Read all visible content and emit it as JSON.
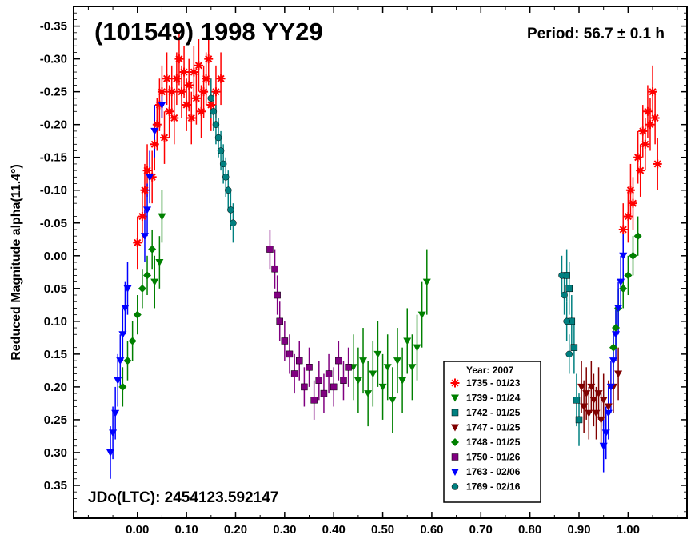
{
  "chart_data": {
    "type": "scatter",
    "title": "(101549) 1998 YY29",
    "period_label": "Period: 56.7 ± 0.1 h",
    "epoch_label": "JDo(LTC): 2454123.592147",
    "xlabel": "",
    "ylabel": "Reduced Magnitude alpha(11.4°)",
    "xlim": [
      -0.13,
      1.12
    ],
    "ylim": [
      -0.38,
      0.4
    ],
    "y_inverted": true,
    "x_ticks": [
      "0.00",
      "0.10",
      "0.20",
      "0.30",
      "0.40",
      "0.50",
      "0.60",
      "0.70",
      "0.80",
      "0.90",
      "1.00"
    ],
    "y_ticks": [
      "-0.35",
      "-0.30",
      "-0.25",
      "-0.20",
      "-0.15",
      "-0.10",
      "-0.05",
      "0.00",
      "0.05",
      "0.10",
      "0.15",
      "0.20",
      "0.25",
      "0.30",
      "0.35"
    ],
    "legend": {
      "title": "Year: 2007",
      "position": "bottom-right",
      "entries": [
        "1735 - 01/23",
        "1739 - 01/24",
        "1742 - 01/25",
        "1747 - 01/25",
        "1748 - 01/25",
        "1750 - 01/26",
        "1763 - 02/06",
        "1769 - 02/16"
      ]
    },
    "series": [
      {
        "name": "1735 - 01/23",
        "color": "#ff0000",
        "marker": "asterisk",
        "points": [
          [
            0.0,
            -0.02,
            0.04
          ],
          [
            0.01,
            -0.06,
            0.04
          ],
          [
            0.015,
            -0.1,
            0.04
          ],
          [
            0.02,
            -0.13,
            0.04
          ],
          [
            0.03,
            -0.12,
            0.04
          ],
          [
            0.035,
            -0.17,
            0.04
          ],
          [
            0.04,
            -0.2,
            0.04
          ],
          [
            0.045,
            -0.23,
            0.04
          ],
          [
            0.05,
            -0.25,
            0.04
          ],
          [
            0.055,
            -0.18,
            0.04
          ],
          [
            0.06,
            -0.27,
            0.04
          ],
          [
            0.065,
            -0.22,
            0.04
          ],
          [
            0.07,
            -0.25,
            0.04
          ],
          [
            0.075,
            -0.21,
            0.04
          ],
          [
            0.08,
            -0.27,
            0.04
          ],
          [
            0.085,
            -0.3,
            0.04
          ],
          [
            0.09,
            -0.25,
            0.04
          ],
          [
            0.095,
            -0.28,
            0.04
          ],
          [
            0.1,
            -0.23,
            0.04
          ],
          [
            0.105,
            -0.26,
            0.04
          ],
          [
            0.11,
            -0.21,
            0.04
          ],
          [
            0.115,
            -0.28,
            0.04
          ],
          [
            0.12,
            -0.24,
            0.04
          ],
          [
            0.125,
            -0.29,
            0.04
          ],
          [
            0.13,
            -0.22,
            0.04
          ],
          [
            0.135,
            -0.25,
            0.04
          ],
          [
            0.14,
            -0.27,
            0.04
          ],
          [
            0.145,
            -0.3,
            0.04
          ],
          [
            0.15,
            -0.23,
            0.04
          ],
          [
            0.16,
            -0.25,
            0.04
          ],
          [
            0.17,
            -0.27,
            0.04
          ],
          [
            0.99,
            -0.04,
            0.04
          ],
          [
            1.0,
            -0.06,
            0.04
          ],
          [
            1.005,
            -0.1,
            0.04
          ],
          [
            1.01,
            -0.08,
            0.04
          ],
          [
            1.02,
            -0.15,
            0.04
          ],
          [
            1.025,
            -0.13,
            0.04
          ],
          [
            1.03,
            -0.19,
            0.04
          ],
          [
            1.035,
            -0.17,
            0.04
          ],
          [
            1.04,
            -0.22,
            0.04
          ],
          [
            1.045,
            -0.2,
            0.04
          ],
          [
            1.05,
            -0.25,
            0.04
          ],
          [
            1.055,
            -0.21,
            0.04
          ],
          [
            1.06,
            -0.14,
            0.04
          ]
        ]
      },
      {
        "name": "1739 - 01/24",
        "color": "#008000",
        "marker": "triangle-down",
        "points": [
          [
            0.44,
            0.17,
            0.05
          ],
          [
            0.45,
            0.19,
            0.05
          ],
          [
            0.46,
            0.16,
            0.05
          ],
          [
            0.47,
            0.21,
            0.05
          ],
          [
            0.48,
            0.18,
            0.05
          ],
          [
            0.49,
            0.15,
            0.05
          ],
          [
            0.5,
            0.2,
            0.05
          ],
          [
            0.51,
            0.17,
            0.05
          ],
          [
            0.52,
            0.22,
            0.05
          ],
          [
            0.53,
            0.16,
            0.05
          ],
          [
            0.54,
            0.19,
            0.05
          ],
          [
            0.55,
            0.13,
            0.05
          ],
          [
            0.56,
            0.17,
            0.05
          ],
          [
            0.57,
            0.14,
            0.05
          ],
          [
            0.58,
            0.09,
            0.05
          ],
          [
            0.59,
            0.04,
            0.05
          ],
          [
            0.035,
            0.04,
            0.04
          ],
          [
            0.045,
            0.01,
            0.04
          ],
          [
            0.05,
            -0.06,
            0.04
          ]
        ]
      },
      {
        "name": "1742 - 01/25",
        "color": "#008080",
        "marker": "square",
        "points": [
          [
            0.875,
            0.03,
            0.04
          ],
          [
            0.88,
            0.05,
            0.04
          ],
          [
            0.885,
            0.1,
            0.04
          ],
          [
            0.89,
            0.14,
            0.04
          ],
          [
            0.895,
            0.22,
            0.04
          ],
          [
            0.9,
            0.25,
            0.04
          ]
        ]
      },
      {
        "name": "1747 - 01/25",
        "color": "#800000",
        "marker": "triangle-down",
        "points": [
          [
            0.905,
            0.2,
            0.04
          ],
          [
            0.91,
            0.23,
            0.04
          ],
          [
            0.915,
            0.21,
            0.04
          ],
          [
            0.92,
            0.24,
            0.04
          ],
          [
            0.925,
            0.2,
            0.04
          ],
          [
            0.93,
            0.22,
            0.04
          ],
          [
            0.935,
            0.24,
            0.04
          ],
          [
            0.94,
            0.21,
            0.04
          ],
          [
            0.945,
            0.25,
            0.04
          ],
          [
            0.95,
            0.22,
            0.04
          ],
          [
            0.96,
            0.23,
            0.04
          ],
          [
            0.97,
            0.2,
            0.04
          ],
          [
            0.98,
            0.18,
            0.04
          ]
        ]
      },
      {
        "name": "1748 - 01/25",
        "color": "#008000",
        "marker": "diamond",
        "points": [
          [
            -0.03,
            0.2,
            0.03
          ],
          [
            -0.02,
            0.16,
            0.03
          ],
          [
            -0.01,
            0.13,
            0.03
          ],
          [
            0.0,
            0.09,
            0.03
          ],
          [
            0.01,
            0.05,
            0.03
          ],
          [
            0.02,
            0.03,
            0.03
          ],
          [
            0.03,
            -0.01,
            0.03
          ],
          [
            0.97,
            0.14,
            0.03
          ],
          [
            0.975,
            0.11,
            0.03
          ],
          [
            0.98,
            0.08,
            0.03
          ],
          [
            0.99,
            0.05,
            0.03
          ],
          [
            1.0,
            0.03,
            0.03
          ],
          [
            1.01,
            0.0,
            0.03
          ],
          [
            1.02,
            -0.03,
            0.03
          ]
        ]
      },
      {
        "name": "1750 - 01/26",
        "color": "#800080",
        "marker": "square",
        "points": [
          [
            0.27,
            -0.01,
            0.03
          ],
          [
            0.28,
            0.02,
            0.03
          ],
          [
            0.285,
            0.06,
            0.03
          ],
          [
            0.29,
            0.1,
            0.03
          ],
          [
            0.3,
            0.13,
            0.03
          ],
          [
            0.31,
            0.15,
            0.03
          ],
          [
            0.32,
            0.18,
            0.03
          ],
          [
            0.33,
            0.16,
            0.03
          ],
          [
            0.34,
            0.2,
            0.03
          ],
          [
            0.35,
            0.17,
            0.03
          ],
          [
            0.36,
            0.22,
            0.03
          ],
          [
            0.37,
            0.19,
            0.03
          ],
          [
            0.38,
            0.21,
            0.03
          ],
          [
            0.39,
            0.18,
            0.03
          ],
          [
            0.4,
            0.2,
            0.03
          ],
          [
            0.41,
            0.16,
            0.03
          ],
          [
            0.42,
            0.19,
            0.03
          ],
          [
            0.43,
            0.17,
            0.03
          ]
        ]
      },
      {
        "name": "1763 - 02/06",
        "color": "#0000ff",
        "marker": "triangle-down",
        "points": [
          [
            -0.055,
            0.3,
            0.04
          ],
          [
            -0.05,
            0.27,
            0.04
          ],
          [
            -0.045,
            0.24,
            0.04
          ],
          [
            -0.04,
            0.19,
            0.04
          ],
          [
            -0.035,
            0.16,
            0.04
          ],
          [
            -0.03,
            0.12,
            0.04
          ],
          [
            -0.025,
            0.08,
            0.04
          ],
          [
            -0.02,
            0.05,
            0.04
          ],
          [
            0.015,
            -0.03,
            0.04
          ],
          [
            0.02,
            -0.07,
            0.04
          ],
          [
            0.025,
            -0.12,
            0.04
          ],
          [
            0.035,
            -0.19,
            0.04
          ],
          [
            0.05,
            -0.23,
            0.02
          ],
          [
            0.95,
            0.29,
            0.04
          ],
          [
            0.955,
            0.27,
            0.04
          ],
          [
            0.96,
            0.24,
            0.04
          ],
          [
            0.965,
            0.2,
            0.04
          ],
          [
            0.97,
            0.16,
            0.04
          ],
          [
            0.975,
            0.12,
            0.04
          ],
          [
            0.98,
            0.08,
            0.04
          ],
          [
            0.985,
            0.04,
            0.04
          ],
          [
            0.99,
            0.0,
            0.04
          ]
        ]
      },
      {
        "name": "1769 - 02/16",
        "color": "#008080",
        "marker": "circle",
        "points": [
          [
            0.15,
            -0.24,
            0.03
          ],
          [
            0.155,
            -0.22,
            0.03
          ],
          [
            0.16,
            -0.2,
            0.03
          ],
          [
            0.165,
            -0.18,
            0.03
          ],
          [
            0.17,
            -0.16,
            0.03
          ],
          [
            0.175,
            -0.14,
            0.03
          ],
          [
            0.18,
            -0.12,
            0.03
          ],
          [
            0.185,
            -0.1,
            0.03
          ],
          [
            0.19,
            -0.07,
            0.03
          ],
          [
            0.195,
            -0.05,
            0.03
          ],
          [
            0.865,
            0.03,
            0.03
          ],
          [
            0.87,
            0.06,
            0.03
          ],
          [
            0.875,
            0.1,
            0.03
          ],
          [
            0.88,
            0.15,
            0.03
          ]
        ]
      }
    ]
  }
}
